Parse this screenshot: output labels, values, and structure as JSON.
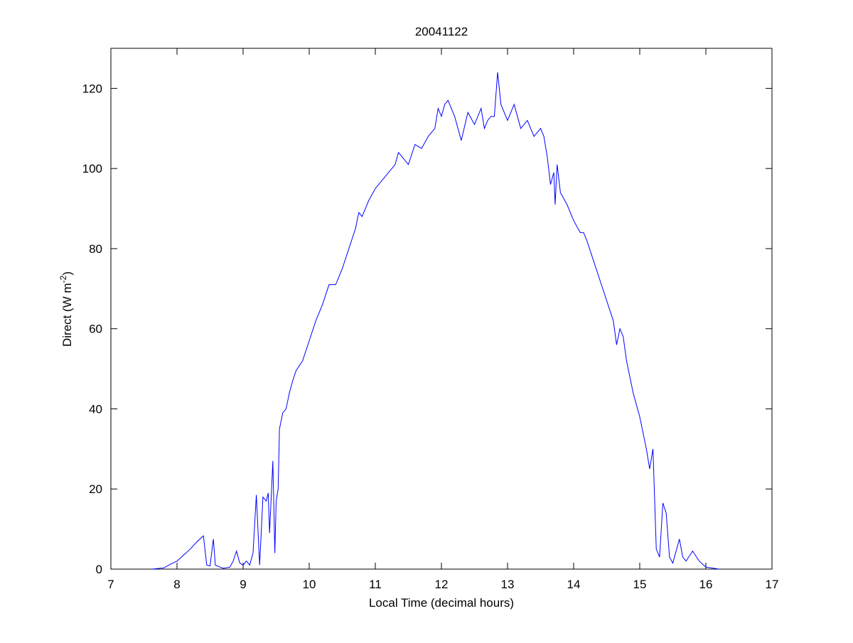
{
  "chart_data": {
    "type": "line",
    "title": "20041122",
    "xlabel": "Local Time (decimal hours)",
    "ylabel": "Direct (W m",
    "ylabel_sup": "-2",
    "ylabel_end": ")",
    "color": "#0000ff",
    "x": [
      7.62,
      7.8,
      7.9,
      8.0,
      8.1,
      8.2,
      8.3,
      8.4,
      8.45,
      8.5,
      8.55,
      8.58,
      8.65,
      8.7,
      8.8,
      8.85,
      8.9,
      8.95,
      9.0,
      9.05,
      9.1,
      9.15,
      9.2,
      9.25,
      9.3,
      9.35,
      9.38,
      9.4,
      9.42,
      9.45,
      9.48,
      9.5,
      9.53,
      9.55,
      9.6,
      9.65,
      9.7,
      9.75,
      9.8,
      9.9,
      10.0,
      10.1,
      10.2,
      10.3,
      10.4,
      10.5,
      10.6,
      10.7,
      10.75,
      10.8,
      10.9,
      11.0,
      11.1,
      11.2,
      11.3,
      11.35,
      11.4,
      11.5,
      11.6,
      11.7,
      11.8,
      11.9,
      11.95,
      12.0,
      12.05,
      12.1,
      12.2,
      12.3,
      12.4,
      12.5,
      12.6,
      12.65,
      12.7,
      12.75,
      12.8,
      12.85,
      12.9,
      13.0,
      13.1,
      13.2,
      13.3,
      13.4,
      13.5,
      13.55,
      13.6,
      13.65,
      13.7,
      13.72,
      13.75,
      13.8,
      13.9,
      14.0,
      14.1,
      14.15,
      14.2,
      14.3,
      14.4,
      14.5,
      14.6,
      14.65,
      14.7,
      14.75,
      14.8,
      14.9,
      15.0,
      15.05,
      15.1,
      15.15,
      15.2,
      15.25,
      15.3,
      15.35,
      15.4,
      15.45,
      15.5,
      15.6,
      15.65,
      15.7,
      15.8,
      15.9,
      16.0,
      16.2
    ],
    "values": [
      0,
      0.3,
      1.2,
      2,
      3.5,
      5,
      6.8,
      8.3,
      1,
      0.8,
      7.5,
      1,
      0.5,
      0.2,
      0.5,
      2,
      4.5,
      1.5,
      1,
      2,
      1,
      4,
      18.5,
      1,
      18,
      17,
      19,
      9,
      16,
      27,
      4,
      17,
      20,
      35,
      39,
      40,
      44,
      47,
      49.5,
      52,
      57,
      62,
      66,
      71,
      71,
      75,
      80,
      85,
      89,
      88,
      92,
      95,
      97,
      99,
      101,
      104,
      103,
      101,
      106,
      105,
      108,
      110,
      115,
      113,
      116,
      117,
      113,
      107,
      114,
      111,
      115,
      110,
      112,
      113,
      113,
      124,
      116,
      112,
      116,
      110,
      112,
      108,
      110,
      108,
      103,
      96,
      99,
      91,
      101,
      94,
      91,
      87,
      84,
      84,
      82,
      77,
      72,
      67,
      62,
      56,
      60,
      58,
      52,
      44,
      38,
      34,
      30,
      25,
      30,
      5,
      3,
      16.5,
      14,
      3,
      1.5,
      7.5,
      3,
      2,
      4.5,
      2,
      0.5,
      0
    ],
    "xlim": [
      7,
      17
    ],
    "ylim": [
      0,
      130
    ],
    "xticks": [
      7,
      8,
      9,
      10,
      11,
      12,
      13,
      14,
      15,
      16,
      17
    ],
    "yticks": [
      0,
      20,
      40,
      60,
      80,
      100,
      120
    ]
  }
}
